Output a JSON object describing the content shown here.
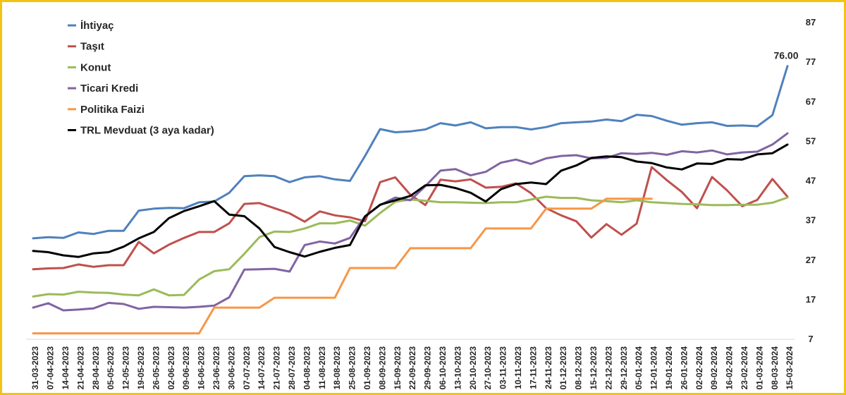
{
  "chart_data": {
    "type": "line",
    "title": "",
    "xlabel": "",
    "ylabel": "",
    "ylim": [
      7,
      87
    ],
    "yticks": [
      7,
      17,
      27,
      37,
      47,
      57,
      67,
      77,
      87
    ],
    "yaxis_position": "right",
    "grid": false,
    "legend_position": "top-left",
    "x": [
      "31-03-2023",
      "07-04-2023",
      "14-04-2023",
      "21-04-2023",
      "28-04-2023",
      "05-05-2023",
      "12-05-2023",
      "19-05-2023",
      "26-05-2023",
      "02-06-2023",
      "09-06-2023",
      "16-06-2023",
      "23-06-2023",
      "30-06-2023",
      "07-07-2023",
      "14-07-2023",
      "21-07-2023",
      "28-07-2023",
      "04-08-2023",
      "11-08-2023",
      "18-08-2023",
      "25-08-2023",
      "01-09-2023",
      "08-09-2023",
      "15-09-2023",
      "22-09-2023",
      "29-09-2023",
      "06-10-2023",
      "13-10-2023",
      "20-10-2023",
      "27-10-2023",
      "03-11-2023",
      "10-11-2023",
      "17-11-2023",
      "24-11-2023",
      "01-12-2023",
      "08-12-2023",
      "15-12-2023",
      "22-12-2023",
      "29-12-2023",
      "05-01-2024",
      "12-01-2024",
      "19-01-2024",
      "26-01-2024",
      "02-02-2024",
      "09-02-2024",
      "16-02-2024",
      "23-02-2024",
      "01-03-2024",
      "08-03-2024",
      "15-03-2024"
    ],
    "series": [
      {
        "name": "İhtiyaç",
        "color": "#4f81bd",
        "values": [
          32.5,
          32.8,
          32.6,
          34.0,
          33.6,
          34.4,
          34.4,
          39.5,
          40.0,
          40.2,
          40.1,
          41.6,
          41.8,
          44.0,
          48.2,
          48.4,
          48.2,
          46.7,
          47.9,
          48.2,
          47.4,
          47.0,
          53.3,
          60.1,
          59.3,
          59.5,
          60.0,
          61.6,
          61.0,
          61.8,
          60.3,
          60.6,
          60.6,
          60.0,
          60.6,
          61.6,
          61.8,
          62.0,
          62.5,
          62.1,
          63.7,
          63.4,
          62.2,
          61.2,
          61.6,
          61.8,
          60.9,
          61.0,
          60.8,
          63.6,
          76.0
        ]
      },
      {
        "name": "Taşıt",
        "color": "#c0504d",
        "values": [
          24.7,
          24.9,
          25.0,
          25.9,
          25.3,
          25.7,
          25.7,
          31.6,
          28.7,
          30.9,
          32.6,
          34.1,
          34.1,
          36.3,
          41.2,
          41.4,
          40.1,
          38.8,
          36.7,
          39.3,
          38.3,
          37.8,
          36.8,
          46.7,
          47.9,
          43.5,
          40.9,
          47.3,
          46.9,
          47.4,
          45.3,
          45.5,
          46.4,
          43.9,
          40.1,
          38.3,
          36.8,
          32.7,
          36.1,
          33.4,
          36.2,
          50.5,
          47.2,
          44.2,
          40.1,
          48.0,
          44.6,
          40.6,
          42.2,
          47.5,
          43.0
        ]
      },
      {
        "name": "Konut",
        "color": "#9bbb59",
        "values": [
          17.8,
          18.4,
          18.3,
          19.0,
          18.8,
          18.7,
          18.3,
          18.1,
          19.6,
          18.1,
          18.2,
          22.1,
          24.2,
          24.7,
          28.6,
          32.8,
          34.2,
          34.1,
          35.0,
          36.3,
          36.3,
          37.0,
          35.7,
          38.9,
          41.7,
          42.3,
          42.0,
          41.6,
          41.6,
          41.5,
          41.4,
          41.6,
          41.6,
          42.3,
          43.0,
          42.7,
          42.7,
          42.1,
          41.9,
          41.6,
          42.1,
          41.6,
          41.4,
          41.2,
          41.1,
          40.9,
          40.9,
          41.0,
          41.0,
          41.5,
          42.8
        ]
      },
      {
        "name": "Ticari Kredi",
        "color": "#8064a2",
        "values": [
          15.0,
          16.1,
          14.3,
          14.5,
          14.8,
          16.2,
          15.9,
          14.7,
          15.2,
          15.1,
          15.0,
          15.2,
          15.5,
          17.6,
          24.6,
          24.7,
          24.8,
          24.1,
          30.8,
          31.7,
          31.2,
          32.6,
          38.1,
          40.9,
          42.8,
          42.1,
          45.7,
          49.6,
          50.0,
          48.4,
          49.3,
          51.6,
          52.4,
          51.3,
          52.7,
          53.3,
          53.5,
          52.7,
          52.8,
          54.0,
          53.8,
          54.1,
          53.6,
          54.5,
          54.2,
          54.7,
          53.7,
          54.2,
          54.4,
          56.2,
          59.0
        ]
      },
      {
        "name": "Politika Faizi",
        "color": "#f79646",
        "values": [
          8.5,
          8.5,
          8.5,
          8.5,
          8.5,
          8.5,
          8.5,
          8.5,
          8.5,
          8.5,
          8.5,
          8.5,
          15.0,
          15.0,
          15.0,
          15.0,
          17.5,
          17.5,
          17.5,
          17.5,
          17.5,
          25.0,
          25.0,
          25.0,
          25.0,
          30.0,
          30.0,
          30.0,
          30.0,
          30.0,
          35.0,
          35.0,
          35.0,
          35.0,
          40.0,
          40.0,
          40.0,
          40.0,
          42.5,
          42.5,
          42.5,
          42.5,
          null,
          null,
          null,
          null,
          null,
          null,
          null,
          null,
          null
        ]
      },
      {
        "name": "TRL Mevduat (3 aya kadar)",
        "color": "#000000",
        "values": [
          29.3,
          29.0,
          28.2,
          27.8,
          28.7,
          29.0,
          30.4,
          32.5,
          34.1,
          37.6,
          39.4,
          40.6,
          41.9,
          38.5,
          38.1,
          35.0,
          30.3,
          29.0,
          27.9,
          29.1,
          30.1,
          30.8,
          38.0,
          41.0,
          42.1,
          43.2,
          45.9,
          46.0,
          45.2,
          44.0,
          41.8,
          44.9,
          46.2,
          46.6,
          46.2,
          49.6,
          50.9,
          52.8,
          53.2,
          53.0,
          51.9,
          51.5,
          50.4,
          49.9,
          51.4,
          51.3,
          52.5,
          52.4,
          53.7,
          54.0,
          56.2
        ]
      }
    ],
    "annotations": [
      {
        "series": "İhtiyaç",
        "x": "15-03-2024",
        "text": "76.00"
      }
    ]
  }
}
